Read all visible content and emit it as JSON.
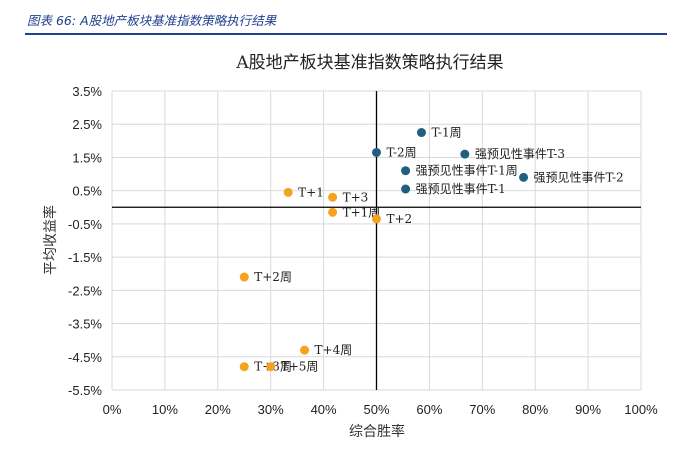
{
  "caption": "图表 66:  A股地产板块基准指数策略执行结果",
  "colors": {
    "caption": "#1f3f8f",
    "blue": "#1f5f7f",
    "orange": "#f5a21f"
  },
  "chart_data": {
    "type": "scatter",
    "title": "A股地产板块基准指数策略执行结果",
    "xlabel": "综合胜率",
    "ylabel": "平均收益率",
    "xlim": [
      0,
      1
    ],
    "ylim": [
      -0.055,
      0.035
    ],
    "x_ticks": [
      "0%",
      "10%",
      "20%",
      "30%",
      "40%",
      "50%",
      "60%",
      "70%",
      "80%",
      "90%",
      "100%"
    ],
    "y_ticks": [
      "3.5%",
      "2.5%",
      "1.5%",
      "0.5%",
      "-0.5%",
      "-1.5%",
      "-2.5%",
      "-3.5%",
      "-4.5%",
      "-5.5%"
    ],
    "grid": true,
    "series": [
      {
        "color": "#1f5f7f",
        "points": [
          {
            "label": "T-1周",
            "x": 0.585,
            "y": 0.0225
          },
          {
            "label": "T-2周",
            "x": 0.5,
            "y": 0.0165
          },
          {
            "label": "强预见性事件T-3",
            "x": 0.667,
            "y": 0.016
          },
          {
            "label": "强预见性事件T-1周",
            "x": 0.555,
            "y": 0.011
          },
          {
            "label": "强预见性事件T-2",
            "x": 0.778,
            "y": 0.009
          },
          {
            "label": "强预见性事件T-1",
            "x": 0.555,
            "y": 0.0055
          }
        ]
      },
      {
        "color": "#f5a21f",
        "points": [
          {
            "label": "T+1",
            "x": 0.333,
            "y": 0.0045
          },
          {
            "label": "T+3",
            "x": 0.417,
            "y": 0.003
          },
          {
            "label": "T+1周",
            "x": 0.417,
            "y": -0.0015
          },
          {
            "label": "T+2",
            "x": 0.5,
            "y": -0.0035
          },
          {
            "label": "T+2周",
            "x": 0.25,
            "y": -0.021
          },
          {
            "label": "T+4周",
            "x": 0.364,
            "y": -0.043
          },
          {
            "label": "T+3周",
            "x": 0.25,
            "y": -0.048
          },
          {
            "label": "T+5周",
            "x": 0.3,
            "y": -0.048
          }
        ]
      }
    ]
  }
}
